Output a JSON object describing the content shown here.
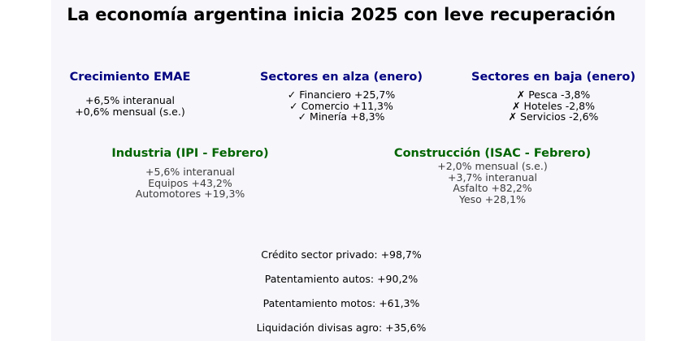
{
  "title": "La economía argentina inicia 2025 con leve recuperación",
  "blocks": {
    "emae": {
      "heading": "Crecimiento EMAE",
      "lines": [
        "+6,5% interanual",
        "+0,6% mensual (s.e.)"
      ]
    },
    "alza": {
      "heading": "Sectores en alza (enero)",
      "lines": [
        "✓ Financiero +25,7%",
        "✓ Comercio +11,3%",
        "✓ Minería +8,3%"
      ]
    },
    "baja": {
      "heading": "Sectores en baja (enero)",
      "lines": [
        "✗ Pesca -3,8%",
        "✗ Hoteles -2,8%",
        "✗ Servicios -2,6%"
      ]
    },
    "industria": {
      "heading": "Industria (IPI - Febrero)",
      "lines": [
        "+5,6% interanual",
        "Equipos +43,2%",
        "Automotores +19,3%"
      ]
    },
    "construccion": {
      "heading": "Construcción (ISAC - Febrero)",
      "lines": [
        "+2,0% mensual (s.e.)",
        "+3,7% interanual",
        "Asfalto +82,2%",
        "Yeso +28,1%"
      ]
    }
  },
  "stats": [
    "Crédito sector privado: +98,7%",
    "Patentamiento autos: +90,2%",
    "Patentamiento motos: +61,3%",
    "Liquidación divisas agro: +35,6%"
  ],
  "colors": {
    "heading_blue": "#000080",
    "heading_green": "#006400",
    "panel_background": "#f6f6fb"
  }
}
